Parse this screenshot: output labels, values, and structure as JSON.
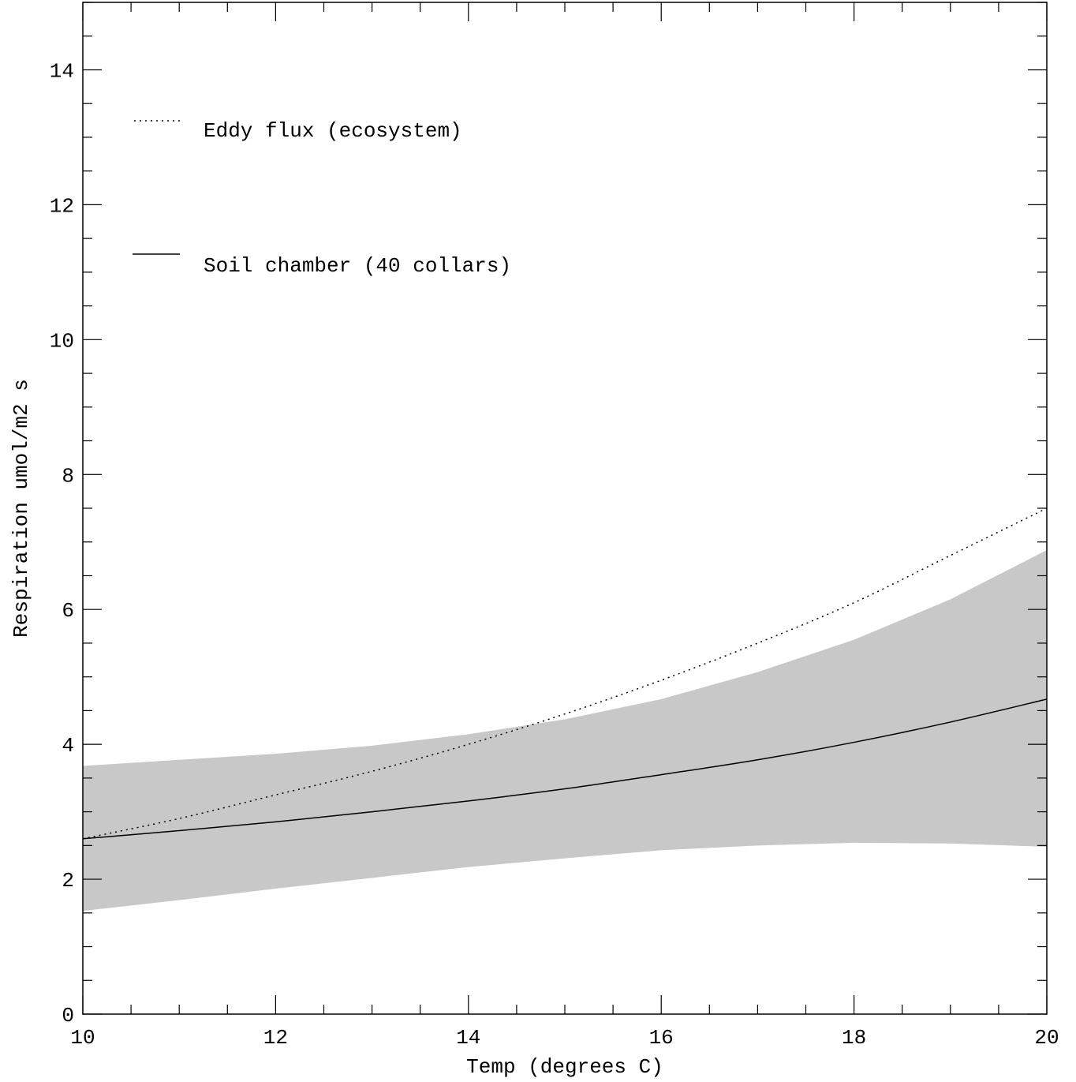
{
  "chart_data": {
    "type": "line",
    "title": "",
    "xlabel": "Temp (degrees C)",
    "ylabel": "Respiration umol/m2 s",
    "xlim": [
      10,
      20
    ],
    "ylim": [
      0,
      15
    ],
    "x_ticks": [
      10,
      12,
      14,
      16,
      18,
      20
    ],
    "y_ticks": [
      0,
      2,
      4,
      6,
      8,
      10,
      12,
      14
    ],
    "x": [
      10,
      11,
      12,
      13,
      14,
      15,
      16,
      17,
      18,
      19,
      20
    ],
    "series": [
      {
        "name": "Eddy flux (ecosystem)",
        "style": "dotted",
        "values": [
          2.6,
          2.9,
          3.25,
          3.6,
          4.0,
          4.45,
          4.95,
          5.5,
          6.1,
          6.8,
          7.5
        ]
      },
      {
        "name": "Soil chamber (40 collars)",
        "style": "solid",
        "values": [
          2.6,
          2.72,
          2.85,
          3.0,
          3.16,
          3.34,
          3.55,
          3.77,
          4.03,
          4.33,
          4.67
        ]
      }
    ],
    "band": {
      "color": "#c8c8c8",
      "upper": [
        3.68,
        3.77,
        3.86,
        3.98,
        4.15,
        4.37,
        4.67,
        5.07,
        5.55,
        6.15,
        6.88
      ],
      "lower": [
        1.53,
        1.69,
        1.86,
        2.02,
        2.18,
        2.31,
        2.43,
        2.5,
        2.54,
        2.53,
        2.48
      ]
    },
    "grid": false,
    "legend_position": "top-left",
    "colors": {
      "line": "#000000",
      "band": "#c8c8c8",
      "background": "#ffffff"
    }
  }
}
